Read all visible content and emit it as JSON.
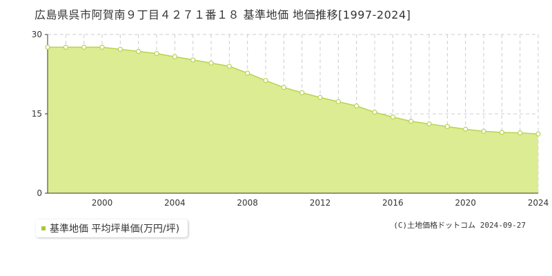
{
  "title": "広島県呉市阿賀南９丁目４２７１番１８ 基準地価 地価推移[1997-2024]",
  "legend": {
    "label": "基準地価 平均坪単価(万円/坪)"
  },
  "copyright": "(C)土地価格ドットコム 2024-09-27",
  "colors": {
    "fill": "#dcec93",
    "line": "#b7d34f",
    "marker_fill": "#ffffff",
    "marker_stroke": "#b7d34f",
    "grid": "#cccccc",
    "axis": "#333333"
  },
  "chart_data": {
    "type": "area",
    "title": "広島県呉市阿賀南９丁目４２７１番１８ 基準地価 地価推移[1997-2024]",
    "xlabel": "",
    "ylabel": "",
    "xlim": [
      1997,
      2024
    ],
    "ylim": [
      0,
      30
    ],
    "yticks": [
      0,
      15,
      30
    ],
    "xticks": [
      2000,
      2004,
      2008,
      2012,
      2016,
      2020,
      2024
    ],
    "grid": true,
    "series": [
      {
        "name": "基準地価 平均坪単価(万円/坪)",
        "x": [
          1997,
          1998,
          1999,
          2000,
          2001,
          2002,
          2003,
          2004,
          2005,
          2006,
          2007,
          2008,
          2009,
          2010,
          2011,
          2012,
          2013,
          2014,
          2015,
          2016,
          2017,
          2018,
          2019,
          2020,
          2021,
          2022,
          2023,
          2024
        ],
        "values": [
          27.6,
          27.6,
          27.6,
          27.6,
          27.2,
          26.8,
          26.4,
          25.8,
          25.2,
          24.6,
          24.0,
          22.7,
          21.3,
          20.0,
          19.0,
          18.1,
          17.3,
          16.5,
          15.3,
          14.4,
          13.6,
          13.1,
          12.6,
          12.1,
          11.7,
          11.5,
          11.4,
          11.2
        ]
      }
    ]
  }
}
